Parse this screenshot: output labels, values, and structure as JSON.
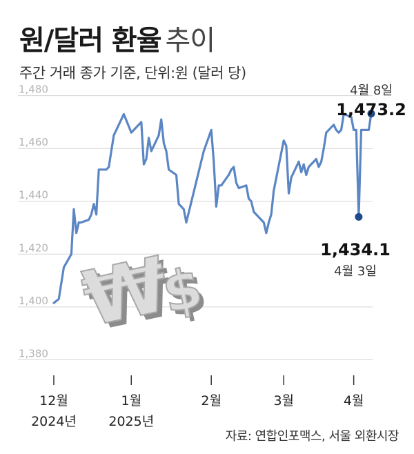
{
  "title": {
    "main": "원/달러 환율",
    "light": "추이"
  },
  "subtitle": "주간 거래 종가 기준, 단위:원 (달러 당)",
  "source": "자료: 연합인포맥스, 서울 외환시장",
  "colors": {
    "line": "#5b86c4",
    "marker": "#1e4a8c",
    "grid": "#d5d5d5",
    "watermark": "#d8d8d8"
  },
  "icons": {
    "watermark": "won-dollar-3d-symbols"
  },
  "chart_data": {
    "type": "line",
    "title": "원/달러 환율 추이",
    "ylim": [
      1372,
      1482
    ],
    "y_ticks": [
      {
        "value": 1480,
        "label": "1,480"
      },
      {
        "value": 1460,
        "label": "1,460"
      },
      {
        "value": 1440,
        "label": "1,440"
      },
      {
        "value": 1420,
        "label": "1,420"
      },
      {
        "value": 1400,
        "label": "1,400"
      },
      {
        "value": 1380,
        "label": "1,380"
      }
    ],
    "x_ticks": [
      {
        "date": "2024-12-02",
        "month": "12월",
        "year": "2024년"
      },
      {
        "date": "2025-01-02",
        "month": "1월",
        "year": "2025년"
      },
      {
        "date": "2025-02-03",
        "month": "2월",
        "year": ""
      },
      {
        "date": "2025-03-04",
        "month": "3월",
        "year": ""
      },
      {
        "date": "2025-04-01",
        "month": "4월",
        "year": ""
      }
    ],
    "grid": true,
    "series": [
      {
        "x": [
          "2024-12-02",
          "2024-12-04",
          "2024-12-06",
          "2024-12-09",
          "2024-12-10",
          "2024-12-11",
          "2024-12-12",
          "2024-12-13",
          "2024-12-16",
          "2024-12-17",
          "2024-12-18",
          "2024-12-19",
          "2024-12-20",
          "2024-12-23",
          "2024-12-24",
          "2024-12-26",
          "2024-12-27",
          "2024-12-30",
          "2025-01-02",
          "2025-01-03",
          "2025-01-06",
          "2025-01-07",
          "2025-01-08",
          "2025-01-09",
          "2025-01-10",
          "2025-01-13",
          "2025-01-14",
          "2025-01-15",
          "2025-01-16",
          "2025-01-17",
          "2025-01-20",
          "2025-01-21",
          "2025-01-22",
          "2025-01-23",
          "2025-01-24",
          "2025-01-31",
          "2025-02-03",
          "2025-02-04",
          "2025-02-05",
          "2025-02-06",
          "2025-02-07",
          "2025-02-10",
          "2025-02-11",
          "2025-02-12",
          "2025-02-13",
          "2025-02-14",
          "2025-02-17",
          "2025-02-18",
          "2025-02-19",
          "2025-02-20",
          "2025-02-21",
          "2025-02-24",
          "2025-02-25",
          "2025-02-26",
          "2025-02-27",
          "2025-02-28",
          "2025-03-04",
          "2025-03-05",
          "2025-03-06",
          "2025-03-07",
          "2025-03-10",
          "2025-03-11",
          "2025-03-12",
          "2025-03-13",
          "2025-03-14",
          "2025-03-17",
          "2025-03-18",
          "2025-03-19",
          "2025-03-20",
          "2025-03-21",
          "2025-03-24",
          "2025-03-25",
          "2025-03-26",
          "2025-03-27",
          "2025-03-28",
          "2025-03-31",
          "2025-04-01",
          "2025-04-02",
          "2025-04-03",
          "2025-04-04",
          "2025-04-07",
          "2025-04-08"
        ],
        "values": [
          1401.5,
          1403,
          1415,
          1420,
          1437,
          1428,
          1432,
          1432,
          1433,
          1435,
          1439,
          1435,
          1452,
          1452,
          1453,
          1465,
          1467,
          1473,
          1466,
          1467,
          1470,
          1454,
          1456,
          1464,
          1459,
          1465,
          1471,
          1462,
          1459,
          1452,
          1450,
          1439,
          1438,
          1437,
          1432,
          1459,
          1467,
          1455,
          1438,
          1446,
          1446,
          1450,
          1452,
          1453,
          1447,
          1445,
          1446,
          1441,
          1440,
          1436,
          1435,
          1432,
          1428,
          1432,
          1435,
          1444,
          1463,
          1461,
          1443,
          1449,
          1455,
          1451,
          1454,
          1450,
          1453,
          1456,
          1453,
          1455,
          1460,
          1466,
          1469,
          1467,
          1466,
          1467,
          1473,
          1472,
          1467,
          1467,
          1434.1,
          1467,
          1467,
          1473.2
        ]
      }
    ],
    "annotations": [
      {
        "label": "4월 8일",
        "value_label": "1,473.2",
        "date": "2025-04-08",
        "value": 1473.2
      },
      {
        "label": "4월 3일",
        "value_label": "1,434.1",
        "date": "2025-04-03",
        "value": 1434.1
      }
    ]
  }
}
